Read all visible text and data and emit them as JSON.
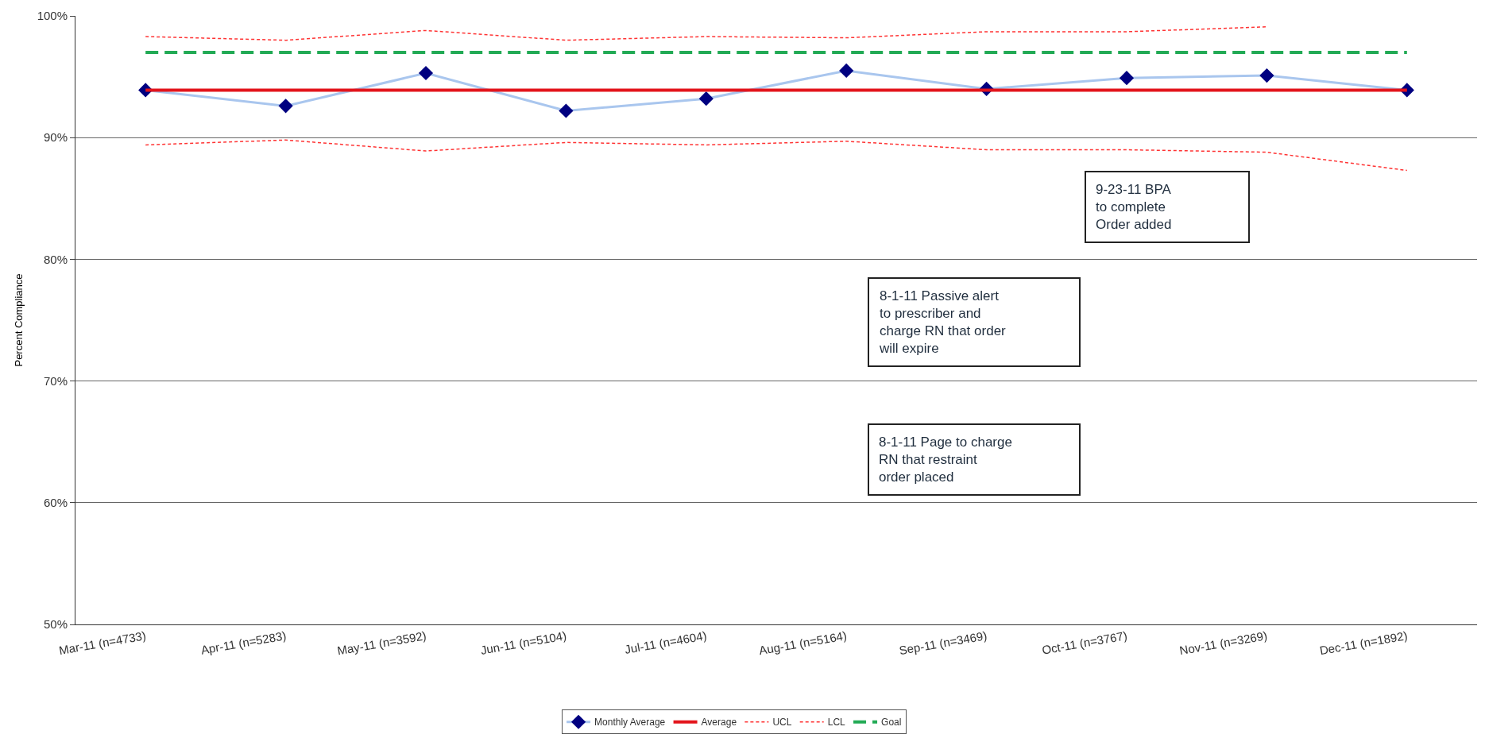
{
  "chart_data": {
    "type": "line",
    "ylabel": "Percent Compliance",
    "categories": [
      "Mar-11 (n=4733)",
      "Apr-11 (n=5283)",
      "May-11 (n=3592)",
      "Jun-11 (n=5104)",
      "Jul-11 (n=4604)",
      "Aug-11 (n=5164)",
      "Sep-11 (n=3469)",
      "Oct-11 (n=3767)",
      "Nov-11 (n=3269)",
      "Dec-11 (n=1892)"
    ],
    "series": [
      {
        "name": "Monthly Average",
        "color": "#a9c6ee",
        "marker": "diamond",
        "line_style": "solid",
        "values": [
          93.9,
          92.6,
          95.3,
          92.2,
          93.2,
          95.5,
          94.0,
          94.9,
          95.1,
          93.9
        ]
      },
      {
        "name": "Average",
        "color": "#e3141b",
        "marker": "none",
        "line_style": "solid",
        "values": [
          93.9,
          93.9,
          93.9,
          93.9,
          93.9,
          93.9,
          93.9,
          93.9,
          93.9,
          93.9
        ]
      },
      {
        "name": "UCL",
        "color": "#ff3333",
        "marker": "none",
        "line_style": "dotted",
        "values": [
          98.3,
          98.0,
          98.8,
          98.0,
          98.3,
          98.2,
          98.7,
          98.7,
          99.1,
          null
        ]
      },
      {
        "name": "LCL",
        "color": "#ff3333",
        "marker": "none",
        "line_style": "dotted",
        "values": [
          89.4,
          89.8,
          88.9,
          89.6,
          89.4,
          89.7,
          89.0,
          89.0,
          88.8,
          87.3
        ]
      },
      {
        "name": "Goal",
        "color": "#22aa55",
        "marker": "none",
        "line_style": "dashed",
        "values": [
          97,
          97,
          97,
          97,
          97,
          97,
          97,
          97,
          97,
          97
        ]
      }
    ],
    "ylim": [
      50,
      100
    ],
    "yticks": [
      {
        "value": 50,
        "label": "50%"
      },
      {
        "value": 60,
        "label": "60%"
      },
      {
        "value": 70,
        "label": "70%"
      },
      {
        "value": 80,
        "label": "80%"
      },
      {
        "value": 90,
        "label": "90%"
      },
      {
        "value": 100,
        "label": "100%"
      }
    ],
    "grid": "y",
    "legend": "bottom",
    "annotations": [
      "9-23-11 BPA\nto complete\nOrder added",
      "8-1-11 Passive alert\nto prescriber and\ncharge RN that order\nwill expire",
      "8-1-11 Page to charge\nRN that restraint\norder placed"
    ]
  }
}
